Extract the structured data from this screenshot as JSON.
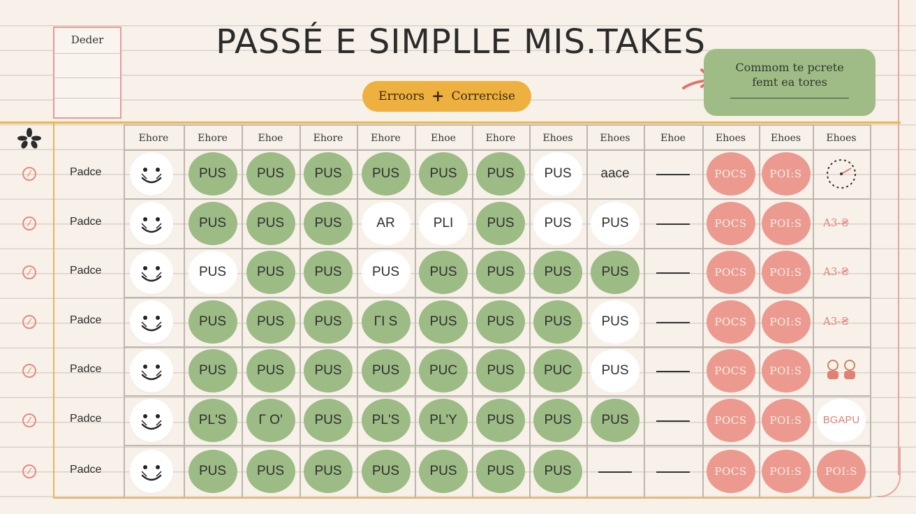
{
  "notes_box": {
    "title": "Deder"
  },
  "title": "PASSÉ E SIMPLLE MIS.TAKES",
  "pill": {
    "left": "Erroors",
    "plus": "+",
    "right": "Corrercise"
  },
  "callout": {
    "line1": "Commom te pcrete",
    "line2": "femt ea tores"
  },
  "columns": [
    "Ehore",
    "Ehore",
    "Ehoe",
    "Ehore",
    "Ehore",
    "Ehoe",
    "Ehore",
    "Ehoes",
    "Ehoes",
    "Ehoe",
    "Ehoes",
    "Ehoes",
    "Ehoes"
  ],
  "row_label": "Padce",
  "rows": [
    {
      "label": "Padce",
      "cells": [
        {
          "t": "PUS",
          "k": "green"
        },
        {
          "t": "PUS",
          "k": "green"
        },
        {
          "t": "PUS",
          "k": "green"
        },
        {
          "t": "PUS",
          "k": "green"
        },
        {
          "t": "PUS",
          "k": "green"
        },
        {
          "t": "PUS",
          "k": "green"
        },
        {
          "t": "PUS",
          "k": "white"
        },
        {
          "t": "aace",
          "k": "plain"
        },
        {
          "t": "",
          "k": "dash"
        },
        {
          "t": "POCS",
          "k": "red"
        },
        {
          "t": "POI:S",
          "k": "red"
        },
        {
          "t": "",
          "k": "dial"
        }
      ]
    },
    {
      "label": "Padce",
      "cells": [
        {
          "t": "PUS",
          "k": "green"
        },
        {
          "t": "PUS",
          "k": "green"
        },
        {
          "t": "PUS",
          "k": "green"
        },
        {
          "t": "AR",
          "k": "white"
        },
        {
          "t": "PLI",
          "k": "white"
        },
        {
          "t": "PUS",
          "k": "green"
        },
        {
          "t": "PUS",
          "k": "white"
        },
        {
          "t": "PUS",
          "k": "white"
        },
        {
          "t": "",
          "k": "dash"
        },
        {
          "t": "POCS",
          "k": "red"
        },
        {
          "t": "POI:S",
          "k": "red"
        },
        {
          "t": "A3-₴",
          "k": "squiggle"
        }
      ]
    },
    {
      "label": "Padce",
      "cells": [
        {
          "t": "PUS",
          "k": "white"
        },
        {
          "t": "PUS",
          "k": "green"
        },
        {
          "t": "PUS",
          "k": "green"
        },
        {
          "t": "PUS",
          "k": "white"
        },
        {
          "t": "PUS",
          "k": "green"
        },
        {
          "t": "PUS",
          "k": "green"
        },
        {
          "t": "PUS",
          "k": "green"
        },
        {
          "t": "PUS",
          "k": "green"
        },
        {
          "t": "",
          "k": "dash"
        },
        {
          "t": "POCS",
          "k": "red"
        },
        {
          "t": "POI:S",
          "k": "red"
        },
        {
          "t": "A3-₴",
          "k": "squiggle"
        }
      ]
    },
    {
      "label": "Padce",
      "cells": [
        {
          "t": "PUS",
          "k": "green"
        },
        {
          "t": "PUS",
          "k": "green"
        },
        {
          "t": "PUS",
          "k": "green"
        },
        {
          "t": "ΓΙ S",
          "k": "green"
        },
        {
          "t": "PUS",
          "k": "green"
        },
        {
          "t": "PUS",
          "k": "green"
        },
        {
          "t": "PUS",
          "k": "green"
        },
        {
          "t": "PUS",
          "k": "white"
        },
        {
          "t": "",
          "k": "dash"
        },
        {
          "t": "POCS",
          "k": "red"
        },
        {
          "t": "POI:S",
          "k": "red"
        },
        {
          "t": "A3-₴",
          "k": "squiggle"
        }
      ]
    },
    {
      "label": "Padce",
      "cells": [
        {
          "t": "PUS",
          "k": "green"
        },
        {
          "t": "PUS",
          "k": "green"
        },
        {
          "t": "PUS",
          "k": "green"
        },
        {
          "t": "PUS",
          "k": "green"
        },
        {
          "t": "PUC",
          "k": "green"
        },
        {
          "t": "PUS",
          "k": "green"
        },
        {
          "t": "PUC",
          "k": "green"
        },
        {
          "t": "PUS",
          "k": "white"
        },
        {
          "t": "",
          "k": "dash"
        },
        {
          "t": "POCS",
          "k": "red"
        },
        {
          "t": "POI:S",
          "k": "red"
        },
        {
          "t": "",
          "k": "figures"
        }
      ]
    },
    {
      "label": "Padce",
      "cells": [
        {
          "t": "PL'S",
          "k": "green"
        },
        {
          "t": "Γ O'",
          "k": "green"
        },
        {
          "t": "PUS",
          "k": "green"
        },
        {
          "t": "PL'S",
          "k": "green"
        },
        {
          "t": "PL'Y",
          "k": "green"
        },
        {
          "t": "PUS",
          "k": "green"
        },
        {
          "t": "PUS",
          "k": "green"
        },
        {
          "t": "PUS",
          "k": "green"
        },
        {
          "t": "",
          "k": "dash"
        },
        {
          "t": "POCS",
          "k": "red"
        },
        {
          "t": "POI:S",
          "k": "red"
        },
        {
          "t": "BGAPU",
          "k": "badge"
        }
      ]
    },
    {
      "label": "Padce",
      "cells": [
        {
          "t": "PUS",
          "k": "green"
        },
        {
          "t": "PUS",
          "k": "green"
        },
        {
          "t": "PUS",
          "k": "green"
        },
        {
          "t": "PUS",
          "k": "green"
        },
        {
          "t": "PUS",
          "k": "green"
        },
        {
          "t": "PUS",
          "k": "green"
        },
        {
          "t": "PUS",
          "k": "green"
        },
        {
          "t": "",
          "k": "dash"
        },
        {
          "t": "",
          "k": "dash"
        },
        {
          "t": "POCS",
          "k": "red"
        },
        {
          "t": "POI:S",
          "k": "red"
        },
        {
          "t": "POI:S",
          "k": "red"
        }
      ]
    }
  ],
  "colors": {
    "green": "#9dbb85",
    "red": "#ec9a8f",
    "yellow": "#eeb13f",
    "accent_line": "#eab64a"
  }
}
